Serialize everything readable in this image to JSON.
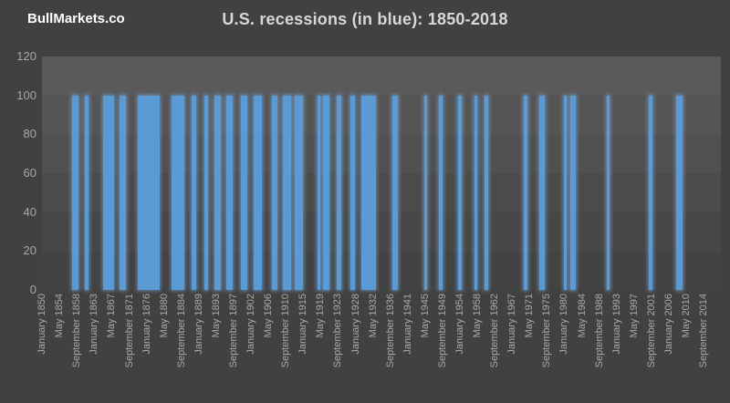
{
  "brand": "BullMarkets.co",
  "header": {
    "title": "U.S. recessions (in blue): 1850-2018"
  },
  "colors": {
    "background": "#414141",
    "bar": "#5b9bd5",
    "bar_glow": "rgba(125,180,235,0.6)",
    "axis_text": "#a8a8a8",
    "title_text": "#d8d8d8",
    "brand_text": "#ffffff"
  },
  "chart_data": {
    "type": "bar",
    "title": "U.S. recessions (in blue): 1850-2018",
    "xlabel": "",
    "ylabel": "",
    "ylim": [
      0,
      120
    ],
    "y_ticks": [
      0,
      20,
      40,
      60,
      80,
      100,
      120
    ],
    "grid": false,
    "legend_position": "none",
    "x_start_month": "1850-01",
    "x_end_month": "2018-12",
    "bar_unit": "month",
    "value_in_recession": 100,
    "value_otherwise": 0,
    "x_tick_interval_months": 52,
    "x_tick_labels": [
      "January 1850",
      "May 1854",
      "September 1858",
      "January 1863",
      "May 1867",
      "September 1871",
      "January 1876",
      "May 1880",
      "September 1884",
      "January 1889",
      "May 1893",
      "September 1897",
      "January 1902",
      "May 1906",
      "September 1910",
      "January 1915",
      "May 1919",
      "September 1923",
      "January 1928",
      "May 1932",
      "September 1936",
      "January 1941",
      "May 1945",
      "September 1949",
      "January 1954",
      "May 1958",
      "September 1962",
      "January 1967",
      "May 1971",
      "September 1975",
      "January 1980",
      "May 1984",
      "September 1988",
      "January 1993",
      "May 1997",
      "September 2001",
      "January 2006",
      "May 2010",
      "September 2014"
    ],
    "recessions": [
      {
        "start": "1857-06",
        "end": "1858-12"
      },
      {
        "start": "1860-10",
        "end": "1861-06"
      },
      {
        "start": "1865-04",
        "end": "1867-12"
      },
      {
        "start": "1869-06",
        "end": "1870-12"
      },
      {
        "start": "1873-10",
        "end": "1879-03"
      },
      {
        "start": "1882-03",
        "end": "1885-05"
      },
      {
        "start": "1887-03",
        "end": "1888-04"
      },
      {
        "start": "1890-07",
        "end": "1891-05"
      },
      {
        "start": "1893-01",
        "end": "1894-06"
      },
      {
        "start": "1895-12",
        "end": "1897-06"
      },
      {
        "start": "1899-06",
        "end": "1900-12"
      },
      {
        "start": "1902-09",
        "end": "1904-08"
      },
      {
        "start": "1907-05",
        "end": "1908-06"
      },
      {
        "start": "1910-01",
        "end": "1912-01"
      },
      {
        "start": "1913-01",
        "end": "1914-12"
      },
      {
        "start": "1918-08",
        "end": "1919-03"
      },
      {
        "start": "1920-01",
        "end": "1921-07"
      },
      {
        "start": "1923-05",
        "end": "1924-07"
      },
      {
        "start": "1926-10",
        "end": "1927-11"
      },
      {
        "start": "1929-08",
        "end": "1933-03"
      },
      {
        "start": "1937-05",
        "end": "1938-06"
      },
      {
        "start": "1945-02",
        "end": "1945-10"
      },
      {
        "start": "1948-11",
        "end": "1949-10"
      },
      {
        "start": "1953-07",
        "end": "1954-05"
      },
      {
        "start": "1957-08",
        "end": "1958-04"
      },
      {
        "start": "1960-04",
        "end": "1961-02"
      },
      {
        "start": "1969-12",
        "end": "1970-11"
      },
      {
        "start": "1973-11",
        "end": "1975-03"
      },
      {
        "start": "1980-01",
        "end": "1980-07"
      },
      {
        "start": "1981-07",
        "end": "1982-11"
      },
      {
        "start": "1990-07",
        "end": "1991-03"
      },
      {
        "start": "2001-03",
        "end": "2001-11"
      },
      {
        "start": "2007-12",
        "end": "2009-06"
      }
    ]
  }
}
